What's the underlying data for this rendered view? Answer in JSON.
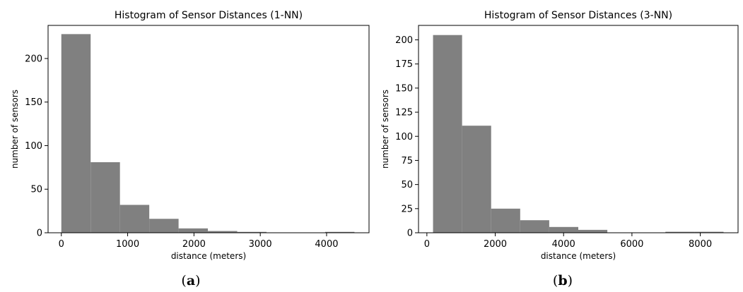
{
  "chart_data": [
    {
      "type": "bar",
      "title": "Histogram of Sensor Distances (1-NN)",
      "xlabel": "distance (meters)",
      "ylabel": "number of sensors",
      "caption_open": "(",
      "caption_letter": "a",
      "caption_close": ")",
      "bin_edges": [
        0,
        442,
        884,
        1326,
        1768,
        2210,
        2652,
        3094,
        3536,
        3978,
        4420
      ],
      "values": [
        228,
        81,
        32,
        16,
        5,
        2,
        1,
        0,
        0,
        1
      ],
      "xlim": [
        -200,
        4640
      ],
      "ylim": [
        0,
        238
      ],
      "xticks": [
        0,
        1000,
        2000,
        3000,
        4000
      ],
      "yticks": [
        0,
        50,
        100,
        150,
        200
      ],
      "bar_color": "#808080"
    },
    {
      "type": "bar",
      "title": "Histogram of Sensor Distances (3-NN)",
      "xlabel": "distance (meters)",
      "ylabel": "number of sensors",
      "caption_open": "(",
      "caption_letter": "b",
      "caption_close": ")",
      "bin_edges": [
        180,
        1030,
        1880,
        2730,
        3580,
        4430,
        5280,
        6130,
        6980,
        7830,
        8680
      ],
      "values": [
        205,
        111,
        25,
        13,
        6,
        3,
        0,
        0,
        1,
        1
      ],
      "xlim": [
        -245,
        9105
      ],
      "ylim": [
        0,
        215
      ],
      "xticks": [
        0,
        2000,
        4000,
        6000,
        8000
      ],
      "yticks": [
        0,
        25,
        50,
        75,
        100,
        125,
        150,
        175,
        200
      ],
      "bar_color": "#808080"
    }
  ]
}
